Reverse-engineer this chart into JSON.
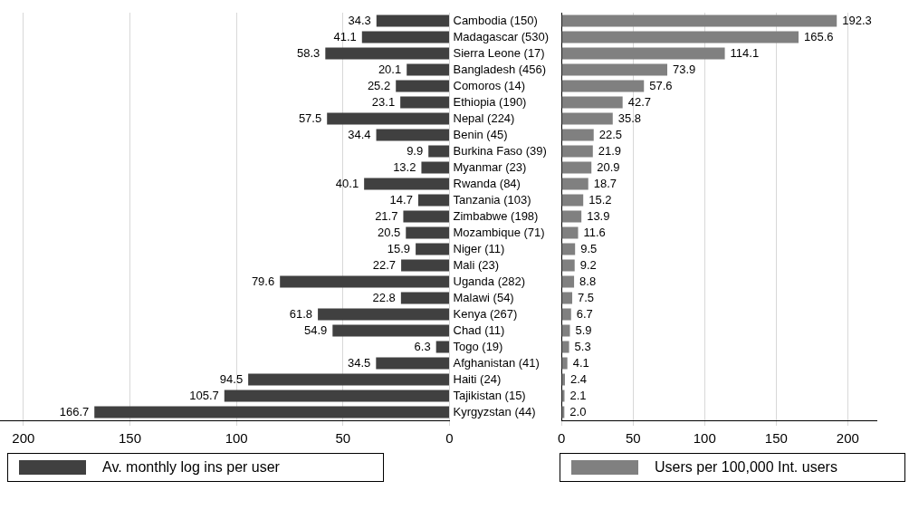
{
  "chart_data": [
    {
      "type": "bar",
      "orientation": "horizontal",
      "categories": [
        "Cambodia (150)",
        "Madagascar (530)",
        "Sierra Leone (17)",
        "Bangladesh (456)",
        "Comoros (14)",
        "Ethiopia (190)",
        "Nepal (224)",
        "Benin (45)",
        "Burkina Faso (39)",
        "Myanmar (23)",
        "Rwanda (84)",
        "Tanzania (103)",
        "Zimbabwe (198)",
        "Mozambique (71)",
        "Niger (11)",
        "Mali (23)",
        "Uganda (282)",
        "Malawi (54)",
        "Kenya (267)",
        "Chad (11)",
        "Togo (19)",
        "Afghanistan (41)",
        "Haiti (24)",
        "Tajikistan (15)",
        "Kyrgyzstan (44)"
      ],
      "series": [
        {
          "name": "Av. monthly log ins per user",
          "color": "#404040",
          "values": [
            34.3,
            41.1,
            58.3,
            20.1,
            25.2,
            23.1,
            57.5,
            34.4,
            9.9,
            13.2,
            40.1,
            14.7,
            21.7,
            20.5,
            15.9,
            22.7,
            79.6,
            22.8,
            61.8,
            54.9,
            6.3,
            34.5,
            94.5,
            105.7,
            166.7
          ],
          "value_labels": [
            "34.3",
            "41.1",
            "58.3",
            "20.1",
            "25.2",
            "23.1",
            "57.5",
            "34.4",
            "9.9",
            "13.2",
            "40.1",
            "14.7",
            "21.7",
            "20.5",
            "15.9",
            "22.7",
            "79.6",
            "22.8",
            "61.8",
            "54.9",
            "6.3",
            "34.5",
            "94.5",
            "105.7",
            "166.7"
          ]
        }
      ],
      "xlim": [
        211,
        0
      ],
      "xticks": [
        200,
        150,
        100,
        50,
        0
      ],
      "grid": "x",
      "legend": "bottom"
    },
    {
      "type": "bar",
      "orientation": "horizontal",
      "categories": [
        null,
        null,
        null,
        null,
        null,
        null,
        null,
        null,
        null,
        null,
        null,
        null,
        null,
        null,
        null,
        null,
        null,
        null,
        null,
        null,
        null,
        null,
        null,
        null,
        null
      ],
      "series": [
        {
          "name": "Users per 100,000 Int. users",
          "color": "#808080",
          "values": [
            192.3,
            165.6,
            114.1,
            73.9,
            57.6,
            42.7,
            35.8,
            22.5,
            21.9,
            20.9,
            18.7,
            15.2,
            13.9,
            11.6,
            9.5,
            9.2,
            8.8,
            7.5,
            6.7,
            5.9,
            5.3,
            4.1,
            2.4,
            2.1,
            2.0
          ],
          "value_labels": [
            "192.3",
            "165.6",
            "114.1",
            "73.9",
            "57.6",
            "42.7",
            "35.8",
            "22.5",
            "21.9",
            "20.9",
            "18.7",
            "15.2",
            "13.9",
            "11.6",
            "9.5",
            "9.2",
            "8.8",
            "7.5",
            "6.7",
            "5.9",
            "5.3",
            "4.1",
            "2.4",
            "2.1",
            "2.0"
          ]
        }
      ],
      "xlim": [
        0,
        220
      ],
      "xticks": [
        0,
        50,
        100,
        150,
        200
      ],
      "grid": "x",
      "legend": "bottom",
      "tick_labels": "x"
    }
  ]
}
